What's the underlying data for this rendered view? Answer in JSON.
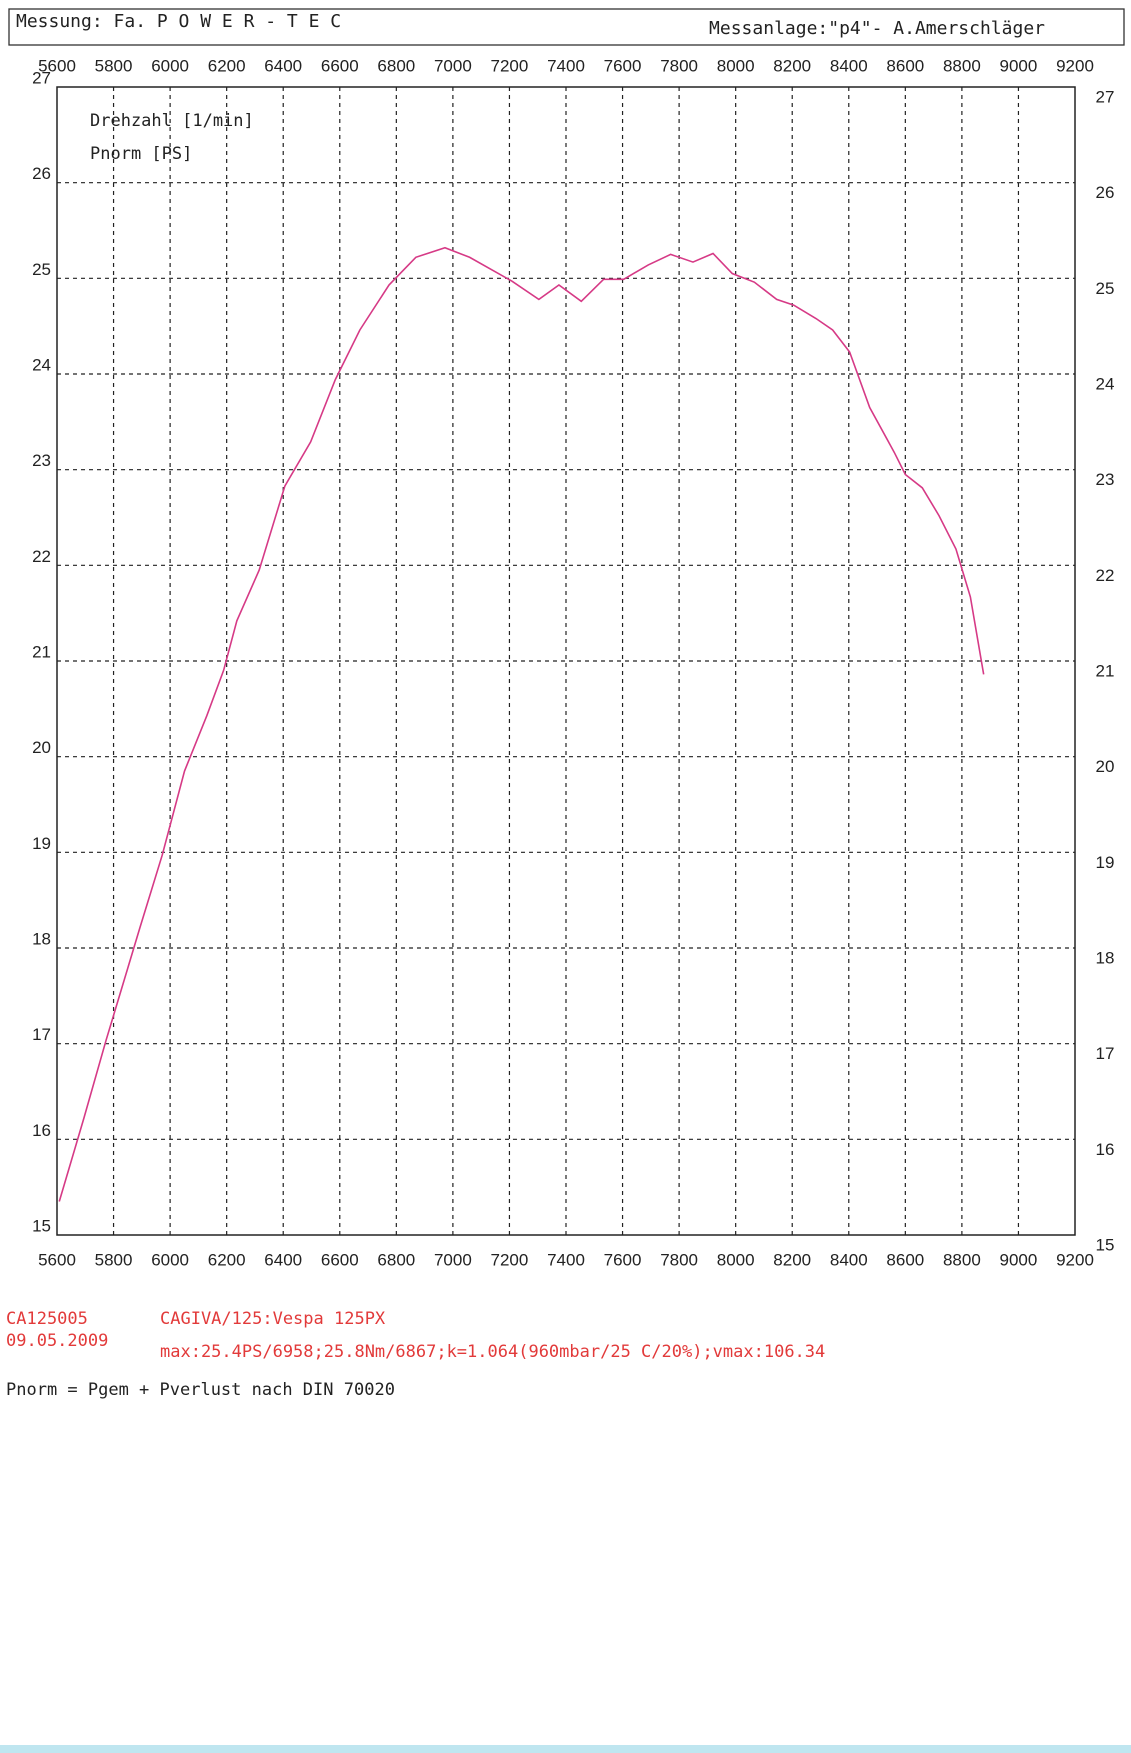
{
  "header": {
    "left": "Messung: Fa. P O W E R - T E C",
    "right": "Messanlage:\"p4\"- A.Amerschläger"
  },
  "chart_data": {
    "type": "line",
    "x_label": "Drehzahl [1/min]",
    "y_label": "Pnorm [PS]",
    "x": [
      5608,
      5695,
      5774,
      5833,
      5893,
      5972,
      6051,
      6130,
      6189,
      6236,
      6315,
      6406,
      6497,
      6584,
      6671,
      6774,
      6869,
      6972,
      7059,
      7209,
      7304,
      7375,
      7454,
      7533,
      7604,
      7691,
      7770,
      7849,
      7920,
      7988,
      8066,
      8145,
      8205,
      8284,
      8343,
      8403,
      8474,
      8561,
      8600,
      8660,
      8719,
      8779,
      8830,
      8877
    ],
    "values": [
      15.35,
      16.22,
      17.04,
      17.62,
      18.21,
      18.97,
      19.85,
      20.43,
      20.9,
      21.42,
      21.95,
      22.83,
      23.29,
      23.94,
      24.46,
      24.93,
      25.22,
      25.32,
      25.22,
      24.97,
      24.78,
      24.93,
      24.76,
      24.99,
      24.99,
      25.14,
      25.25,
      25.17,
      25.26,
      25.05,
      24.96,
      24.78,
      24.72,
      24.58,
      24.46,
      24.23,
      23.65,
      23.18,
      22.95,
      22.81,
      22.52,
      22.17,
      21.67,
      20.86
    ],
    "color": "#d63a86",
    "xlim": [
      5600,
      9200
    ],
    "xticks": [
      5600,
      5800,
      6000,
      6200,
      6400,
      6600,
      6800,
      7000,
      7200,
      7400,
      7600,
      7800,
      8000,
      8200,
      8400,
      8600,
      8800,
      9000,
      9200
    ],
    "ylim": [
      15,
      27
    ],
    "yticks": [
      15,
      16,
      17,
      18,
      19,
      20,
      21,
      22,
      23,
      24,
      25,
      26,
      27
    ],
    "y2lim": [
      15,
      27
    ],
    "y2ticks": [
      15,
      16,
      17,
      18,
      19,
      20,
      21,
      22,
      23,
      24,
      25,
      26,
      27
    ],
    "grid": true
  },
  "footer": {
    "id": "CA125005",
    "vehicle": "CAGIVA/125:Vespa 125PX",
    "date": "09.05.2009",
    "max": "max:25.4PS/6958;25.8Nm/6867;k=1.064(960mbar/25 C/20%);vmax:106.34",
    "note": "Pnorm = Pgem + Pverlust nach DIN 70020"
  }
}
